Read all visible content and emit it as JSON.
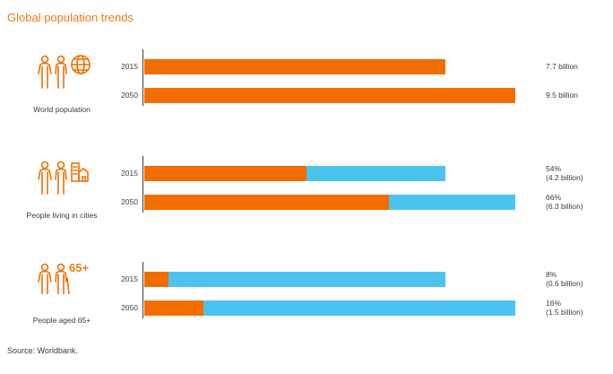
{
  "title": "Global population trends",
  "source": "Source: Worldbank.",
  "colors": {
    "accent": "#f26d00",
    "secondary": "#4bc3ef",
    "text": "#3c3c3c"
  },
  "chart_data": {
    "type": "bar",
    "orientation": "horizontal",
    "stacked": true,
    "groups": [
      {
        "label": "World population",
        "icon": "couple-globe-icon",
        "years": [
          "2015",
          "2050"
        ],
        "bar_total": [
          7.7,
          9.5
        ],
        "share_pct": null,
        "value_labels": [
          [
            "7.7 billion"
          ],
          [
            "9.5 billion"
          ]
        ]
      },
      {
        "label": "People living in cities",
        "icon": "couple-buildings-icon",
        "years": [
          "2015",
          "2050"
        ],
        "bar_total": [
          7.7,
          9.5
        ],
        "share_pct": [
          54,
          66
        ],
        "value_labels": [
          [
            "54%",
            "(4.2 billion)"
          ],
          [
            "66%",
            "(6.3 billion)"
          ]
        ]
      },
      {
        "label": "People aged 65+",
        "icon": "elderly-couple-icon",
        "icon_text": "65+",
        "years": [
          "2015",
          "2050"
        ],
        "bar_total": [
          7.7,
          9.5
        ],
        "share_pct": [
          8,
          16
        ],
        "value_labels": [
          [
            "8%",
            "(0.6 billion)"
          ],
          [
            "16%",
            "(1.5 billion)"
          ]
        ]
      }
    ],
    "units": "billion",
    "xlim": [
      0,
      9.5
    ],
    "grid": false,
    "legend": "none"
  }
}
